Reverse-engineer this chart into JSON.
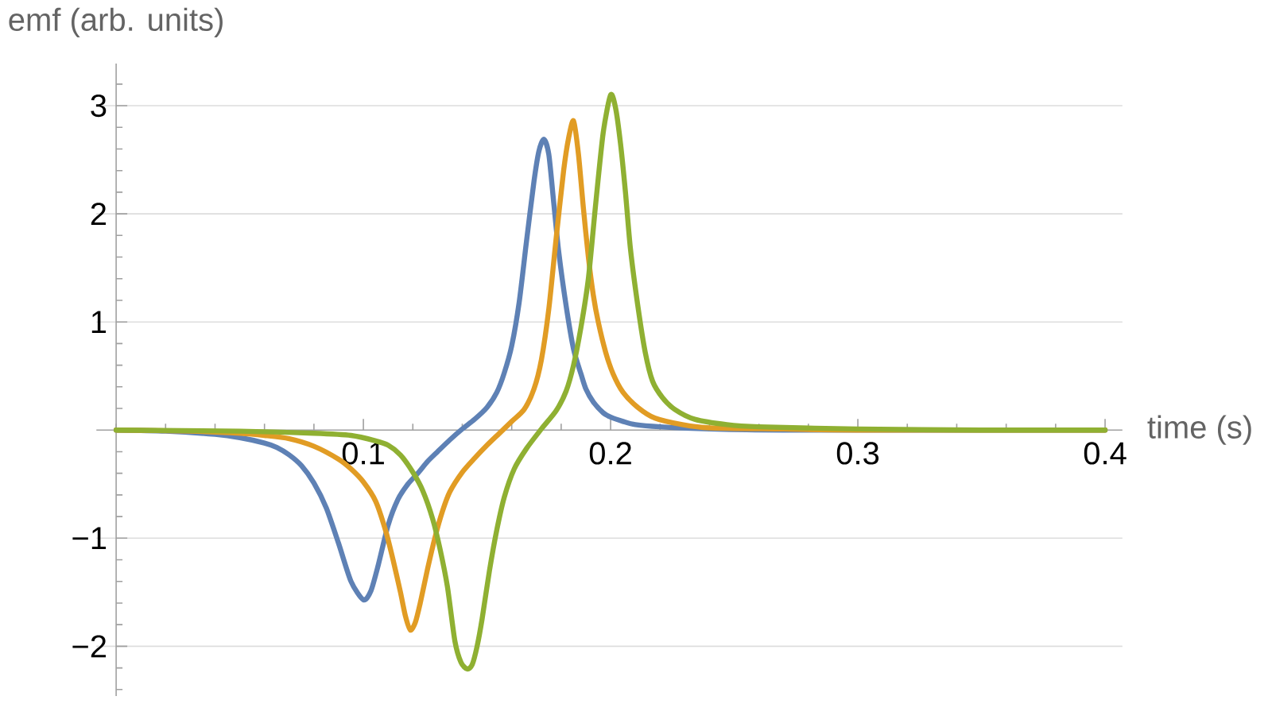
{
  "chart_data": {
    "type": "line",
    "xlabel": "time (s)",
    "ylabel": "emf (arb. units)",
    "xlim": [
      -0.008,
      0.407
    ],
    "ylim": [
      -2.46,
      3.39
    ],
    "xticks": [
      {
        "value": 0,
        "label": null
      },
      {
        "value": 0.02,
        "label": null
      },
      {
        "value": 0.04,
        "label": null
      },
      {
        "value": 0.06,
        "label": null
      },
      {
        "value": 0.08,
        "label": null
      },
      0.1,
      {
        "value": 0.12,
        "label": null
      },
      {
        "value": 0.14,
        "label": null
      },
      {
        "value": 0.16,
        "label": null
      },
      {
        "value": 0.18,
        "label": null
      },
      0.2,
      {
        "value": 0.22,
        "label": null
      },
      {
        "value": 0.24,
        "label": null
      },
      {
        "value": 0.26,
        "label": null
      },
      {
        "value": 0.28,
        "label": null
      },
      0.3,
      {
        "value": 0.32,
        "label": null
      },
      {
        "value": 0.34,
        "label": null
      },
      {
        "value": 0.36,
        "label": null
      },
      {
        "value": 0.38,
        "label": null
      },
      0.4
    ],
    "yticks": [
      {
        "value": -2.4,
        "label": null
      },
      {
        "value": -2.2,
        "label": null
      },
      {
        "value": -2,
        "label": "−2"
      },
      {
        "value": -1.8,
        "label": null
      },
      {
        "value": -1.6,
        "label": null
      },
      {
        "value": -1.4,
        "label": null
      },
      {
        "value": -1.2,
        "label": null
      },
      {
        "value": -1,
        "label": "−1"
      },
      {
        "value": -0.8,
        "label": null
      },
      {
        "value": -0.6,
        "label": null
      },
      {
        "value": -0.4,
        "label": null
      },
      {
        "value": -0.2,
        "label": null
      },
      {
        "value": 0,
        "label": null
      },
      {
        "value": 0.2,
        "label": null
      },
      {
        "value": 0.4,
        "label": null
      },
      {
        "value": 0.6,
        "label": null
      },
      {
        "value": 0.8,
        "label": null
      },
      1,
      {
        "value": 1.2,
        "label": null
      },
      {
        "value": 1.4,
        "label": null
      },
      {
        "value": 1.6,
        "label": null
      },
      {
        "value": 1.8,
        "label": null
      },
      2,
      {
        "value": 2.2,
        "label": null
      },
      {
        "value": 2.4,
        "label": null
      },
      {
        "value": 2.6,
        "label": null
      },
      {
        "value": 2.8,
        "label": null
      },
      3,
      {
        "value": 3.2,
        "label": null
      }
    ],
    "grid": "y",
    "marker": "none",
    "line_style": "solid",
    "series": [
      {
        "color": "#5e81b5",
        "x": [
          0,
          0.02,
          0.04,
          0.05,
          0.06,
          0.065,
          0.07,
          0.075,
          0.08,
          0.085,
          0.09,
          0.095,
          0.1,
          0.103,
          0.106,
          0.11,
          0.114,
          0.118,
          0.122,
          0.126,
          0.13,
          0.135,
          0.14,
          0.145,
          0.15,
          0.154,
          0.157,
          0.16,
          0.163,
          0.166,
          0.169,
          0.171,
          0.173,
          0.175,
          0.177,
          0.179,
          0.182,
          0.185,
          0.188,
          0.19,
          0.193,
          0.197,
          0.2,
          0.205,
          0.21,
          0.22,
          0.24,
          0.27,
          0.4
        ],
        "values": [
          0,
          -0.01,
          -0.04,
          -0.07,
          -0.12,
          -0.16,
          -0.23,
          -0.33,
          -0.49,
          -0.72,
          -1.05,
          -1.4,
          -1.57,
          -1.49,
          -1.25,
          -0.88,
          -0.64,
          -0.5,
          -0.4,
          -0.29,
          -0.2,
          -0.09,
          0.01,
          0.1,
          0.21,
          0.35,
          0.53,
          0.78,
          1.18,
          1.75,
          2.3,
          2.58,
          2.69,
          2.55,
          2.1,
          1.65,
          1.15,
          0.75,
          0.52,
          0.38,
          0.26,
          0.16,
          0.12,
          0.08,
          0.05,
          0.03,
          0.01,
          0,
          0
        ]
      },
      {
        "color": "#e19c24",
        "x": [
          0,
          0.03,
          0.05,
          0.06,
          0.07,
          0.08,
          0.09,
          0.095,
          0.1,
          0.105,
          0.109,
          0.112,
          0.115,
          0.117,
          0.119,
          0.121,
          0.123,
          0.126,
          0.129,
          0.132,
          0.135,
          0.14,
          0.145,
          0.15,
          0.155,
          0.16,
          0.165,
          0.169,
          0.172,
          0.175,
          0.178,
          0.181,
          0.183,
          0.185,
          0.187,
          0.189,
          0.191,
          0.193,
          0.195,
          0.198,
          0.201,
          0.205,
          0.211,
          0.218,
          0.229,
          0.24,
          0.27,
          0.3,
          0.4
        ],
        "values": [
          0,
          -0.01,
          -0.03,
          -0.05,
          -0.08,
          -0.15,
          -0.27,
          -0.36,
          -0.48,
          -0.66,
          -0.93,
          -1.2,
          -1.5,
          -1.72,
          -1.85,
          -1.78,
          -1.6,
          -1.28,
          -0.99,
          -0.75,
          -0.57,
          -0.39,
          -0.26,
          -0.14,
          -0.03,
          0.08,
          0.19,
          0.38,
          0.65,
          1.12,
          1.78,
          2.4,
          2.7,
          2.86,
          2.55,
          2.05,
          1.6,
          1.25,
          1.0,
          0.72,
          0.52,
          0.35,
          0.21,
          0.11,
          0.05,
          0.02,
          0.01,
          0,
          0
        ]
      },
      {
        "color": "#8fb032",
        "x": [
          0,
          0.05,
          0.08,
          0.095,
          0.105,
          0.11,
          0.115,
          0.12,
          0.124,
          0.128,
          0.131,
          0.134,
          0.137,
          0.1395,
          0.142,
          0.144,
          0.146,
          0.148,
          0.151,
          0.154,
          0.157,
          0.161,
          0.166,
          0.172,
          0.178,
          0.182,
          0.185,
          0.188,
          0.191,
          0.194,
          0.197,
          0.2,
          0.202,
          0.204,
          0.206,
          0.208,
          0.211,
          0.214,
          0.217,
          0.221,
          0.226,
          0.234,
          0.247,
          0.26,
          0.3,
          0.35,
          0.4
        ],
        "values": [
          0,
          -0.01,
          -0.03,
          -0.05,
          -0.1,
          -0.14,
          -0.23,
          -0.39,
          -0.56,
          -0.82,
          -1.1,
          -1.45,
          -1.95,
          -2.15,
          -2.21,
          -2.17,
          -2.0,
          -1.75,
          -1.3,
          -0.92,
          -0.62,
          -0.36,
          -0.17,
          0.01,
          0.18,
          0.36,
          0.6,
          0.95,
          1.4,
          2.1,
          2.75,
          3.1,
          2.98,
          2.65,
          2.2,
          1.68,
          1.15,
          0.72,
          0.45,
          0.3,
          0.19,
          0.1,
          0.05,
          0.03,
          0.01,
          0,
          0
        ]
      }
    ]
  }
}
